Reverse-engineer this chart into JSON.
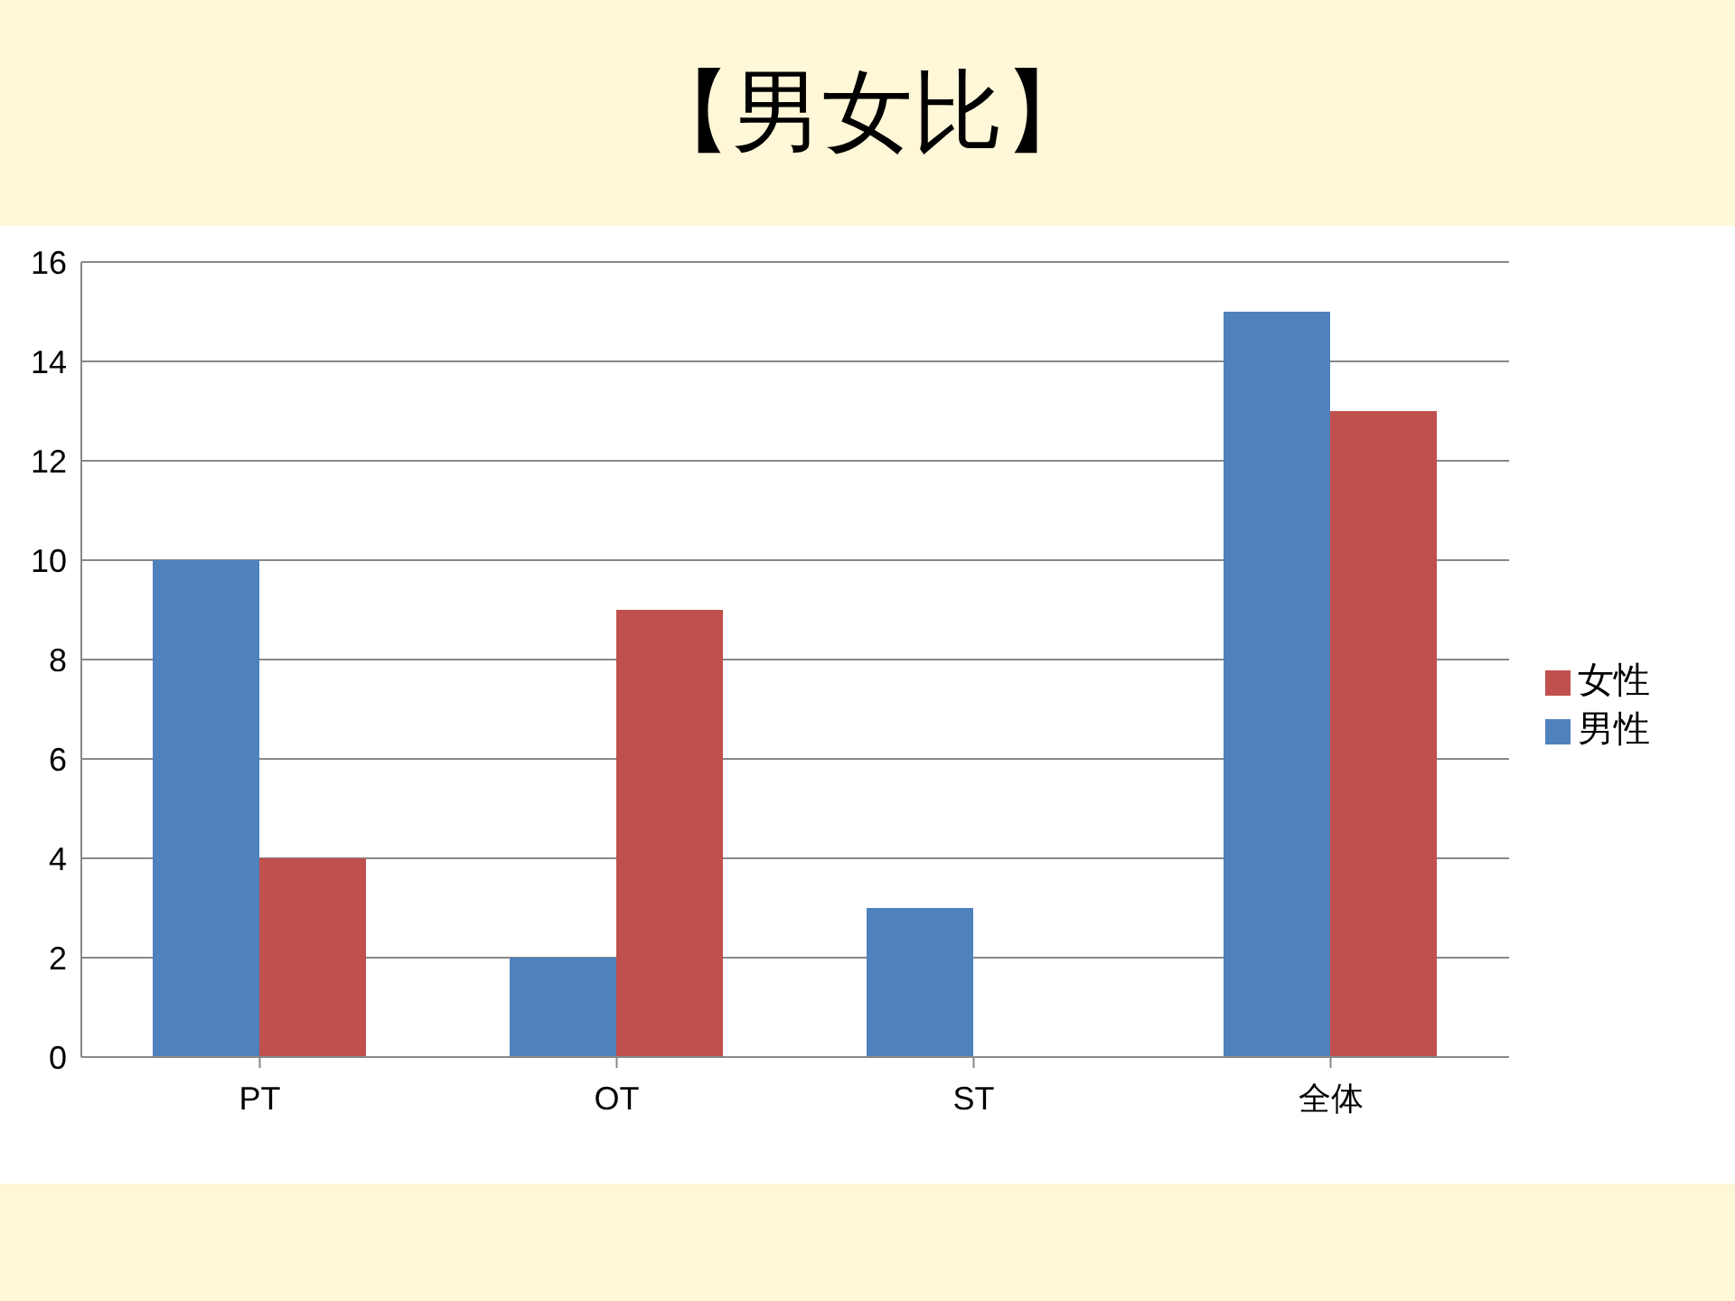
{
  "chart_data": {
    "type": "bar",
    "title": "【男女比】",
    "categories": [
      "PT",
      "OT",
      "ST",
      "全体"
    ],
    "series": [
      {
        "name": "男性",
        "color": "#4f81bd",
        "values": [
          10,
          2,
          3,
          15
        ]
      },
      {
        "name": "女性",
        "color": "#c0504d",
        "values": [
          4,
          9,
          0,
          13
        ]
      }
    ],
    "ylim": [
      0,
      16
    ],
    "yticks": [
      0,
      2,
      4,
      6,
      8,
      10,
      12,
      14,
      16
    ],
    "grid": "y",
    "legend": "right"
  }
}
